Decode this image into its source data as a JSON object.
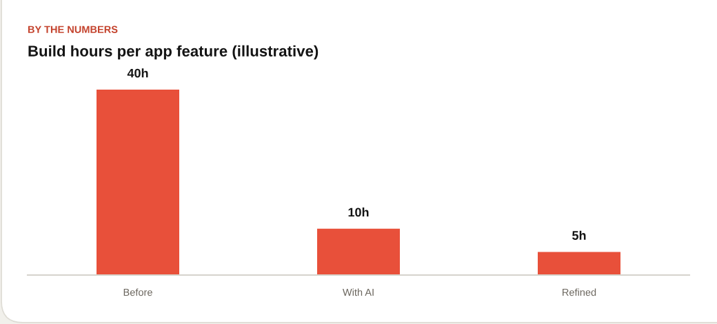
{
  "chart_data": {
    "type": "bar",
    "subtitle": "BY THE NUMBERS",
    "title": "Build hours per app feature (illustrative)",
    "categories": [
      "Before",
      "With AI",
      "Refined"
    ],
    "values": [
      40,
      10,
      5
    ],
    "value_labels": [
      "40h",
      "10h",
      "5h"
    ],
    "color": "#e8503a",
    "tick_labels": "x"
  }
}
